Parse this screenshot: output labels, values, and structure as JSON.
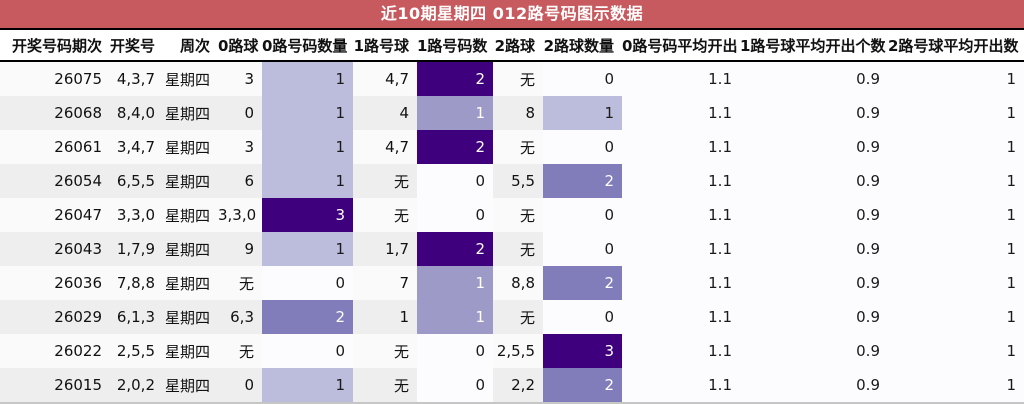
{
  "title": {
    "text": "近10期星期四 012路号码图示数据"
  },
  "colors": {
    "title_bg": "#c75a5e",
    "title_fg": "#ffffff",
    "header_border": "#000000",
    "bottom_border": "#c6c6c6",
    "text": "#111111",
    "row_band_even": "#fafafa",
    "row_band_odd": "#eeeeee",
    "heat_text_light": "#ffffff",
    "heat_text_dark": "#1a1a1a"
  },
  "chart_data": {
    "type": "table",
    "title": "近10期星期四 012路号码图示数据",
    "columns": [
      "开奖号码期次",
      "开奖号",
      "周次",
      "0路球",
      "0路号码数量",
      "1路号球",
      "1路号码数",
      "2路球",
      "2路球数量",
      "0路号码平均开出",
      "1路号球平均开出个数",
      "2路号球平均开出数"
    ],
    "rows": [
      [
        "26075",
        "4,3,7",
        "星期四",
        "3",
        "1",
        "4,7",
        "2",
        "无",
        "0",
        "1.1",
        "0.9",
        "1"
      ],
      [
        "26068",
        "8,4,0",
        "星期四",
        "0",
        "1",
        "4",
        "1",
        "8",
        "1",
        "1.1",
        "0.9",
        "1"
      ],
      [
        "26061",
        "3,4,7",
        "星期四",
        "3",
        "1",
        "4,7",
        "2",
        "无",
        "0",
        "1.1",
        "0.9",
        "1"
      ],
      [
        "26054",
        "6,5,5",
        "星期四",
        "6",
        "1",
        "无",
        "0",
        "5,5",
        "2",
        "1.1",
        "0.9",
        "1"
      ],
      [
        "26047",
        "3,3,0",
        "星期四",
        "3,3,0",
        "3",
        "无",
        "0",
        "无",
        "0",
        "1.1",
        "0.9",
        "1"
      ],
      [
        "26043",
        "1,7,9",
        "星期四",
        "9",
        "1",
        "1,7",
        "2",
        "无",
        "0",
        "1.1",
        "0.9",
        "1"
      ],
      [
        "26036",
        "7,8,8",
        "星期四",
        "无",
        "0",
        "7",
        "1",
        "8,8",
        "2",
        "1.1",
        "0.9",
        "1"
      ],
      [
        "26029",
        "6,1,3",
        "星期四",
        "6,3",
        "2",
        "1",
        "1",
        "无",
        "0",
        "1.1",
        "0.9",
        "1"
      ],
      [
        "26022",
        "2,5,5",
        "星期四",
        "无",
        "0",
        "无",
        "0",
        "2,5,5",
        "3",
        "1.1",
        "0.9",
        "1"
      ],
      [
        "26015",
        "2,0,2",
        "星期四",
        "0",
        "1",
        "无",
        "0",
        "2,2",
        "2",
        "1.1",
        "0.9",
        "1"
      ]
    ],
    "heatmap_columns": [
      "0路号码数量",
      "1路号码数",
      "2路球数量",
      "0路号码平均开出",
      "1路号球平均开出个数",
      "2路号球平均开出数"
    ],
    "heat_palette": {
      "0": "#fcfbfd",
      "0.33": "#bcbddc",
      "0.5": "#9e9ac8",
      "0.67": "#807dba",
      "1": "#3f007d"
    }
  }
}
